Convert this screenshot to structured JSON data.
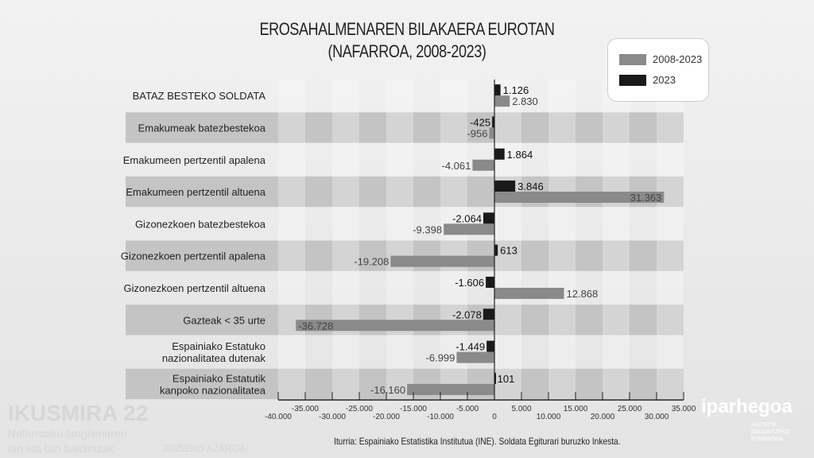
{
  "chart_data": {
    "type": "bar",
    "orientation": "horizontal",
    "title": "EROSAHALMENAREN BILAKAERA EUROTAN",
    "subtitle": "(NAFARROA, 2008-2023)",
    "categories": [
      [
        "BATAZ BESTEKO SOLDATA"
      ],
      [
        "Emakumeak batezbestekoa"
      ],
      [
        "Emakumeen pertzentil apalena"
      ],
      [
        "Emakumeen pertzentil altuena"
      ],
      [
        "Gizonezkoen batezbestekoa"
      ],
      [
        "Gizonezkoen pertzentil apalena"
      ],
      [
        "Gizonezkoen pertzentil altuena"
      ],
      [
        "Gazteak < 35 urte"
      ],
      [
        "Espainiako Estatuko",
        "nazionalitatea dutenak"
      ],
      [
        "Espainiako Estatutik",
        "kanpoko nazionalitatea"
      ]
    ],
    "series": [
      {
        "name": "2023",
        "color": "#1a1a1a",
        "values": [
          1126,
          -425,
          1864,
          3846,
          -2064,
          613,
          -1606,
          -2078,
          -1449,
          101
        ],
        "labels": [
          "1.126",
          "-425",
          "1.864",
          "3.846",
          "-2.064",
          "613",
          "-1.606",
          "-2.078",
          "-1.449",
          "101"
        ]
      },
      {
        "name": "2008-2023",
        "color": "#8a8a8a",
        "values": [
          2830,
          -956,
          -4061,
          31363,
          -9398,
          -19208,
          12868,
          -36728,
          -6999,
          -16160
        ],
        "labels": [
          "2.830",
          "-956",
          "-4.061",
          "31.363",
          "-9.398",
          "-19.208",
          "12.868",
          "-36.728",
          "-6.999",
          "-16.160"
        ]
      }
    ],
    "xlim": [
      -40000,
      35000
    ],
    "xticks": [
      -40000,
      -35000,
      -30000,
      -25000,
      -20000,
      -15000,
      -10000,
      -5000,
      0,
      5000,
      10000,
      15000,
      20000,
      25000,
      30000,
      35000
    ],
    "xtick_labels": [
      "-40.000",
      "-35.000",
      "-30.000",
      "-25.000",
      "-20.000",
      "-15.000",
      "-10.000",
      "-5.000",
      "0",
      "5.000",
      "10.000",
      "15.000",
      "20.000",
      "25.000",
      "30.000",
      "35.000"
    ],
    "legend_position": "top-right",
    "legend": [
      "2008-2023",
      "2023"
    ]
  },
  "source": "Iturria: Espainiako Estatistika Institutua (INE). Soldata Egiturari buruzko Inkesta.",
  "watermark": {
    "left_title": "IKUSMIRA 22",
    "left_line1": "Nafarroako langileriaren",
    "left_line2": "lan eta bizi baldintzak",
    "date": "2025EKO AZAROA",
    "right_logo": "iparhegoa",
    "right_sub": [
      "HAZIGITA",
      "SALGAITZEKO",
      "FUNDAZIOA"
    ]
  }
}
